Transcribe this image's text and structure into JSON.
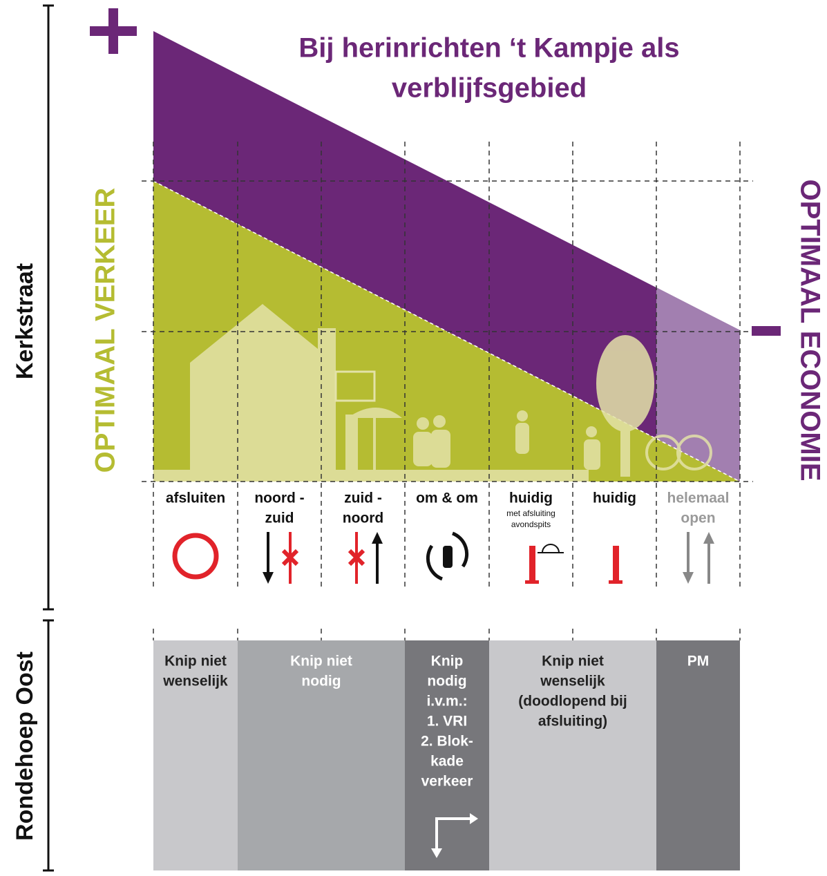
{
  "title": [
    "Bij herinrichten ‘t Kampje als",
    "verblijfsgebied"
  ],
  "axis_labels": {
    "left": "OPTIMAAL VERKEER",
    "right": "OPTIMAAL ECONOMIE"
  },
  "sections": [
    "Kerkstraat",
    "Rondehoep Oost"
  ],
  "columns": [
    {
      "label": [
        "afsluiten"
      ]
    },
    {
      "label": [
        "noord -",
        "zuid"
      ]
    },
    {
      "label": [
        "zuid -",
        "noord"
      ]
    },
    {
      "label": [
        "om & om"
      ]
    },
    {
      "label": [
        "huidig"
      ],
      "sublabel": [
        "met afsluiting",
        "avondspits"
      ]
    },
    {
      "label": [
        "huidig"
      ]
    },
    {
      "label": [
        "helemaal",
        "open"
      ]
    }
  ],
  "boxes": [
    {
      "lines": [
        "Knip niet",
        "wenselijk"
      ]
    },
    {
      "lines": [
        "Knip niet",
        "nodig"
      ]
    },
    {
      "lines": [
        "Knip",
        "nodig",
        "i.v.m.:",
        "1. VRI",
        "2. Blok-",
        "kade",
        "verkeer"
      ]
    },
    {
      "lines": [
        "Knip niet",
        "wenselijk",
        "(doodlopend bij",
        "afsluiting)"
      ]
    },
    {
      "lines": [
        "PM"
      ]
    }
  ]
}
